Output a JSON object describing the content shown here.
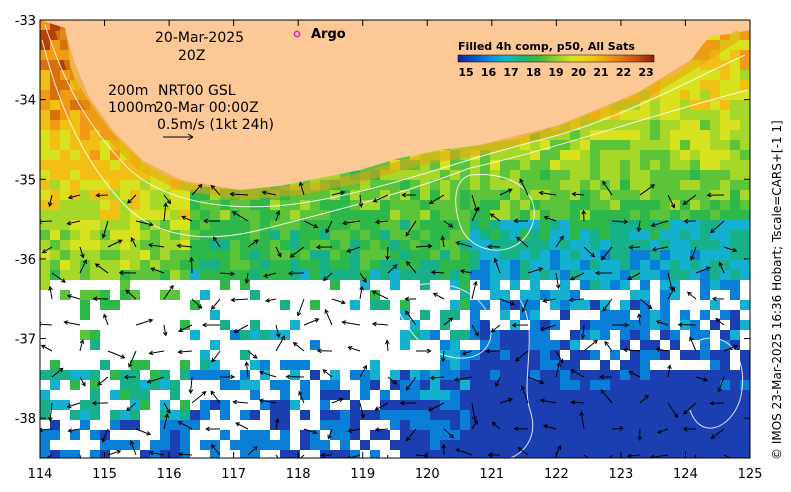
{
  "map": {
    "x_ticks": [
      "114",
      "115",
      "116",
      "117",
      "118",
      "119",
      "120",
      "121",
      "122",
      "123",
      "124",
      "125"
    ],
    "y_ticks": [
      "-33",
      "-34",
      "-35",
      "-36",
      "-37",
      "-38"
    ],
    "lon_range": [
      114,
      125
    ],
    "lat_range": [
      -38.5,
      -33
    ]
  },
  "overlay": {
    "date": "20-Mar-2025",
    "time": "20Z",
    "contour_200": "200m",
    "contour_1000": "1000m",
    "source": "NRT00 GSL",
    "source_time": "20-Mar 00:00Z",
    "vector_scale": "0.5m/s (1kt 24h)"
  },
  "argo": {
    "label": "Argo",
    "symbol_color": "#e020c0"
  },
  "colorbar": {
    "title": "Filled 4h comp, p50, All Sats",
    "labels": [
      "15",
      "16",
      "17",
      "18",
      "19",
      "20",
      "21",
      "22",
      "23"
    ],
    "colors": [
      "#1b1f9c",
      "#0a56c8",
      "#0a8fe0",
      "#10b9c8",
      "#19b37a",
      "#3cbb3c",
      "#8fd22c",
      "#d8e41c",
      "#f0d010",
      "#f4a516",
      "#e07a10",
      "#c8500c",
      "#8e1a0a"
    ]
  },
  "credit": "© IMOS 23-Mar-2025 16:36 Hobart; Tscale=CARS+[-1 1]",
  "land_color": "#fcc896"
}
